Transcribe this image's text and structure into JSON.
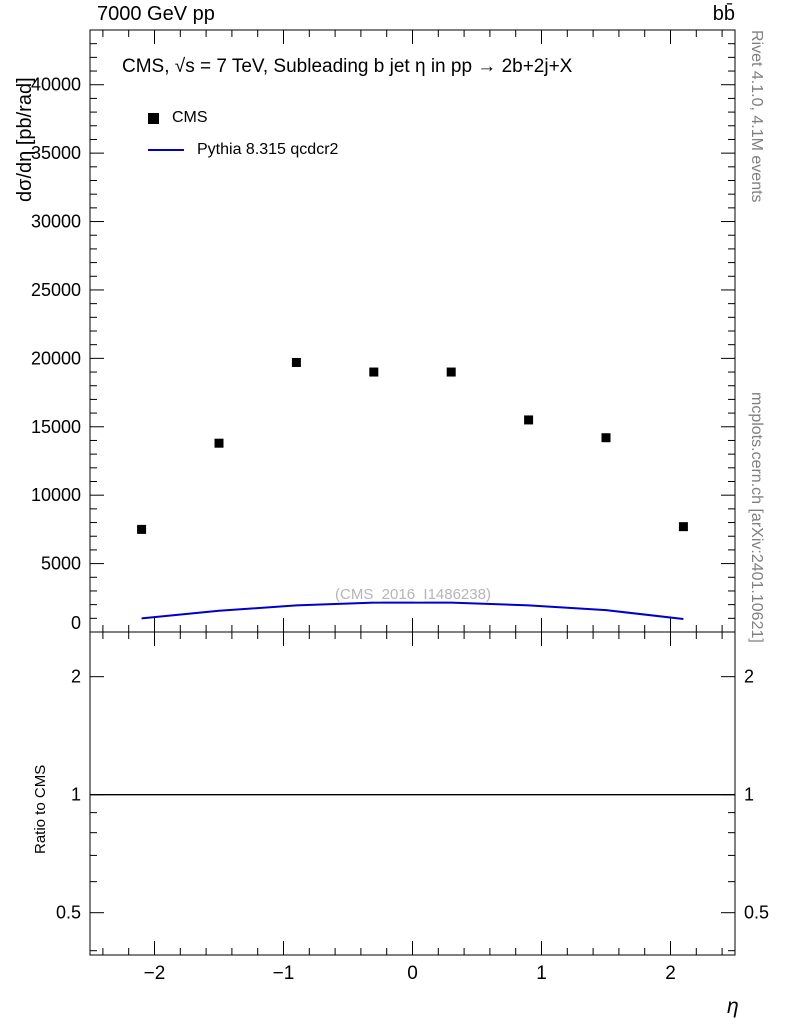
{
  "header": {
    "left": "7000 GeV pp",
    "right": "bb̄"
  },
  "side_notes": {
    "top_right": "Rivet 4.1.0,  4.1M events",
    "bottom_right": "mcplots.cern.ch [arXiv:2401.10621]"
  },
  "chart_data": {
    "type": "scatter+line",
    "title": "CMS, √s = 7 TeV, Subleading b jet η in pp →  2b+2j+X",
    "xlabel": "η",
    "ylabel": "dσ/dη [pb/rad]",
    "watermark": "(CMS_2016_I1486238)",
    "xlim": [
      -2.5,
      2.5
    ],
    "x_major_ticks": [
      -2,
      -1,
      0,
      1,
      2
    ],
    "x_minor_step": 0.2,
    "main": {
      "ylim": [
        0,
        44000
      ],
      "y_major_step": 5000,
      "y_minor_step": 1000,
      "series": [
        {
          "name": "CMS",
          "type": "scatter",
          "marker": "filled-square",
          "color": "#000000",
          "x": [
            -2.1,
            -1.5,
            -0.9,
            -0.3,
            0.3,
            0.9,
            1.5,
            2.1
          ],
          "y": [
            7500,
            13800,
            19700,
            19000,
            19000,
            15500,
            14200,
            7700
          ]
        },
        {
          "name": "Pythia 8.315 qcdcr2",
          "type": "line",
          "color": "#0000cc",
          "x": [
            -2.1,
            -1.5,
            -0.9,
            -0.3,
            0.3,
            0.9,
            1.5,
            2.1
          ],
          "y": [
            1000,
            1550,
            1950,
            2150,
            2150,
            1950,
            1600,
            950
          ]
        }
      ]
    },
    "ratio": {
      "ylabel": "Ratio to CMS",
      "scale": "log",
      "ylim": [
        0.39,
        2.6
      ],
      "major_ticks": [
        0.5,
        1,
        2
      ],
      "minor_ticks": [
        0.4,
        0.6,
        0.7,
        0.8,
        0.9
      ],
      "reference_line": 1
    }
  }
}
